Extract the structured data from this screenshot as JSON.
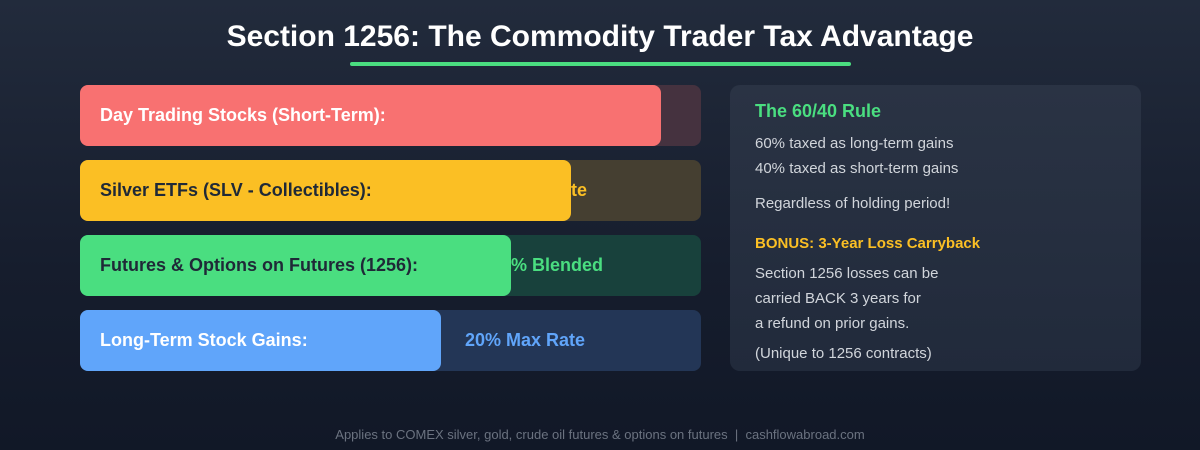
{
  "title": "Section 1256: The Commodity Trader Tax Advantage",
  "colors": {
    "accent": "#4ade80",
    "red": "#f87171",
    "yellow": "#fbbf24",
    "green": "#4ade80",
    "blue": "#60a5fa"
  },
  "bars": [
    {
      "label": "Day Trading Stocks (Short-Term):",
      "value_visible": "",
      "fill_percent": 93.6
    },
    {
      "label": "Silver ETFs (SLV - Collectibles):",
      "value_visible": "te",
      "fill_percent": 79.1
    },
    {
      "label": "Futures & Options on Futures (1256):",
      "value_visible": "% Blended",
      "fill_percent": 69.4
    },
    {
      "label": "Long-Term Stock Gains:",
      "value_visible": "20% Max Rate",
      "fill_percent": 58.1
    }
  ],
  "panel": {
    "heading": "The 60/40 Rule",
    "line1": "60% taxed as long-term gains",
    "line2": "40% taxed as short-term gains",
    "line3": "Regardless of holding period!",
    "bonus": "BONUS: 3-Year Loss Carryback",
    "line4": "Section 1256 losses can be",
    "line5": "carried BACK 3 years for",
    "line6": "a refund on prior gains.",
    "line7": "(Unique to 1256 contracts)"
  },
  "footer": "Applies to COMEX silver, gold, crude oil futures & options on futures  |  cashflowabroad.com"
}
